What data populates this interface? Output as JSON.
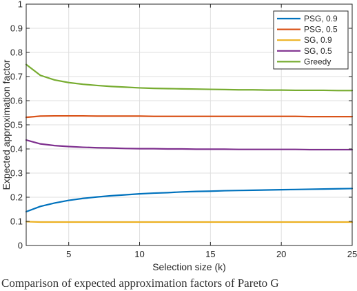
{
  "chart_data": {
    "type": "line",
    "xlabel": "Selection size (k)",
    "ylabel": "Expected approximation factor",
    "xlim": [
      2,
      25
    ],
    "ylim": [
      0,
      1
    ],
    "xticks": [
      5,
      10,
      15,
      20,
      25
    ],
    "yticks": [
      0,
      0.1,
      0.2,
      0.3,
      0.4,
      0.5,
      0.6,
      0.7,
      0.8,
      0.9,
      1
    ],
    "ytick_labels": [
      "0",
      "0.1",
      "0.2",
      "0.3",
      "0.4",
      "0.5",
      "0.6",
      "0.7",
      "0.8",
      "0.9",
      "1"
    ],
    "grid": true,
    "legend_position": "top-right",
    "x": [
      2,
      3,
      4,
      5,
      6,
      7,
      8,
      9,
      10,
      11,
      12,
      13,
      14,
      15,
      16,
      17,
      18,
      19,
      20,
      21,
      22,
      23,
      24,
      25
    ],
    "series": [
      {
        "name": "PSG, 0.9",
        "color": "#0072BD",
        "values": [
          0.14,
          0.162,
          0.176,
          0.187,
          0.195,
          0.201,
          0.206,
          0.21,
          0.214,
          0.217,
          0.219,
          0.222,
          0.224,
          0.225,
          0.227,
          0.228,
          0.229,
          0.23,
          0.231,
          0.232,
          0.233,
          0.234,
          0.235,
          0.236
        ]
      },
      {
        "name": "PSG, 0.5",
        "color": "#D95319",
        "values": [
          0.531,
          0.536,
          0.537,
          0.537,
          0.537,
          0.536,
          0.536,
          0.536,
          0.536,
          0.535,
          0.535,
          0.535,
          0.535,
          0.535,
          0.535,
          0.535,
          0.535,
          0.535,
          0.535,
          0.535,
          0.534,
          0.534,
          0.534,
          0.534
        ]
      },
      {
        "name": "SG, 0.9",
        "color": "#EDB120",
        "values": [
          0.099,
          0.097,
          0.097,
          0.097,
          0.097,
          0.097,
          0.097,
          0.097,
          0.097,
          0.097,
          0.097,
          0.097,
          0.097,
          0.097,
          0.097,
          0.097,
          0.097,
          0.097,
          0.097,
          0.097,
          0.097,
          0.097,
          0.097,
          0.097
        ]
      },
      {
        "name": "SG, 0.5",
        "color": "#7E2F8E",
        "values": [
          0.437,
          0.421,
          0.414,
          0.41,
          0.407,
          0.405,
          0.404,
          0.402,
          0.401,
          0.401,
          0.4,
          0.4,
          0.399,
          0.399,
          0.399,
          0.398,
          0.398,
          0.398,
          0.398,
          0.398,
          0.397,
          0.397,
          0.397,
          0.397
        ]
      },
      {
        "name": "Greedy",
        "color": "#77AC30",
        "values": [
          0.75,
          0.705,
          0.686,
          0.675,
          0.668,
          0.663,
          0.659,
          0.656,
          0.653,
          0.651,
          0.65,
          0.649,
          0.648,
          0.647,
          0.646,
          0.645,
          0.645,
          0.644,
          0.644,
          0.643,
          0.643,
          0.643,
          0.642,
          0.642
        ]
      }
    ]
  },
  "caption": "Comparison of expected approximation factors of Pareto G"
}
